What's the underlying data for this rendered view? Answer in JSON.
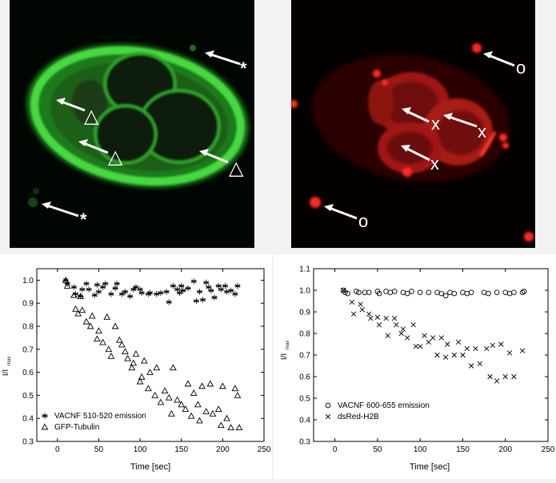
{
  "micrographs": {
    "green": {
      "markers": [
        "*",
        "*",
        "△",
        "△",
        "△"
      ],
      "color": "#3ec93a"
    },
    "red": {
      "markers": [
        "o",
        "o",
        "x",
        "x",
        "x"
      ],
      "color": "#e0201a"
    }
  },
  "chart_data": [
    {
      "type": "scatter",
      "title": "",
      "xlabel": "Time [sec]",
      "ylabel": "I/I",
      "ylabel_sub": "max",
      "xlim": [
        -25,
        250
      ],
      "ylim": [
        0.3,
        1.05
      ],
      "xticks": [
        0,
        50,
        100,
        150,
        200,
        250
      ],
      "yticks": [
        0.3,
        0.4,
        0.5,
        0.6,
        0.7,
        0.8,
        0.9,
        1.0
      ],
      "legend_position": "bottom-left",
      "series": [
        {
          "name": "VACNF 510-520 emission",
          "marker": "asterisk",
          "points": [
            [
              10,
              1.0
            ],
            [
              12,
              0.985
            ],
            [
              20,
              0.97
            ],
            [
              22,
              0.94
            ],
            [
              28,
              0.93
            ],
            [
              30,
              0.96
            ],
            [
              35,
              0.985
            ],
            [
              38,
              0.96
            ],
            [
              45,
              0.935
            ],
            [
              48,
              0.98
            ],
            [
              50,
              0.95
            ],
            [
              55,
              0.97
            ],
            [
              58,
              0.985
            ],
            [
              65,
              0.94
            ],
            [
              70,
              0.965
            ],
            [
              72,
              0.985
            ],
            [
              78,
              0.94
            ],
            [
              82,
              0.95
            ],
            [
              88,
              0.93
            ],
            [
              92,
              0.96
            ],
            [
              95,
              0.97
            ],
            [
              100,
              0.96
            ],
            [
              102,
              0.945
            ],
            [
              110,
              0.94
            ],
            [
              112,
              0.945
            ],
            [
              120,
              0.94
            ],
            [
              125,
              0.945
            ],
            [
              132,
              0.95
            ],
            [
              135,
              0.905
            ],
            [
              140,
              0.975
            ],
            [
              145,
              0.96
            ],
            [
              148,
              0.945
            ],
            [
              150,
              0.975
            ],
            [
              152,
              0.955
            ],
            [
              158,
              0.965
            ],
            [
              165,
              0.995
            ],
            [
              168,
              0.91
            ],
            [
              172,
              0.95
            ],
            [
              176,
              0.915
            ],
            [
              180,
              0.99
            ],
            [
              183,
              0.97
            ],
            [
              186,
              0.955
            ],
            [
              190,
              0.925
            ],
            [
              195,
              0.975
            ],
            [
              198,
              0.96
            ],
            [
              203,
              0.975
            ],
            [
              205,
              0.95
            ],
            [
              210,
              0.955
            ],
            [
              215,
              0.94
            ],
            [
              218,
              0.975
            ]
          ]
        },
        {
          "name": "GFP-Tubulin",
          "marker": "triangle",
          "points": [
            [
              10,
              1.0
            ],
            [
              12,
              0.975
            ],
            [
              20,
              0.935
            ],
            [
              22,
              0.875
            ],
            [
              25,
              0.855
            ],
            [
              28,
              0.93
            ],
            [
              30,
              0.87
            ],
            [
              35,
              0.82
            ],
            [
              40,
              0.8
            ],
            [
              42,
              0.845
            ],
            [
              48,
              0.745
            ],
            [
              50,
              0.78
            ],
            [
              55,
              0.73
            ],
            [
              60,
              0.84
            ],
            [
              62,
              0.7
            ],
            [
              65,
              0.67
            ],
            [
              70,
              0.8
            ],
            [
              75,
              0.74
            ],
            [
              78,
              0.72
            ],
            [
              82,
              0.69
            ],
            [
              85,
              0.66
            ],
            [
              90,
              0.62
            ],
            [
              92,
              0.64
            ],
            [
              95,
              0.68
            ],
            [
              100,
              0.56
            ],
            [
              102,
              0.58
            ],
            [
              105,
              0.65
            ],
            [
              110,
              0.53
            ],
            [
              112,
              0.6
            ],
            [
              118,
              0.5
            ],
            [
              120,
              0.62
            ],
            [
              125,
              0.47
            ],
            [
              130,
              0.52
            ],
            [
              135,
              0.49
            ],
            [
              138,
              0.42
            ],
            [
              140,
              0.62
            ],
            [
              145,
              0.48
            ],
            [
              150,
              0.46
            ],
            [
              155,
              0.44
            ],
            [
              158,
              0.55
            ],
            [
              162,
              0.41
            ],
            [
              165,
              0.51
            ],
            [
              170,
              0.46
            ],
            [
              172,
              0.39
            ],
            [
              175,
              0.54
            ],
            [
              180,
              0.43
            ],
            [
              185,
              0.55
            ],
            [
              188,
              0.42
            ],
            [
              195,
              0.44
            ],
            [
              198,
              0.37
            ],
            [
              200,
              0.54
            ],
            [
              205,
              0.4
            ],
            [
              210,
              0.36
            ],
            [
              215,
              0.53
            ],
            [
              218,
              0.5
            ],
            [
              220,
              0.36
            ]
          ]
        }
      ]
    },
    {
      "type": "scatter",
      "title": "",
      "xlabel": "Time [sec]",
      "ylabel": "I/I",
      "ylabel_sub": "max",
      "xlim": [
        -25,
        250
      ],
      "ylim": [
        0.3,
        1.1
      ],
      "xticks": [
        0,
        50,
        100,
        150,
        200,
        250
      ],
      "yticks": [
        0.3,
        0.4,
        0.5,
        0.6,
        0.7,
        0.8,
        0.9,
        1.0,
        1.1
      ],
      "legend_position": "bottom-left",
      "series": [
        {
          "name": "VACNF 600-655 emission",
          "marker": "circle",
          "points": [
            [
              10,
              1.0
            ],
            [
              12,
              0.99
            ],
            [
              15,
              0.985
            ],
            [
              25,
              0.995
            ],
            [
              28,
              0.99
            ],
            [
              35,
              0.99
            ],
            [
              40,
              0.99
            ],
            [
              50,
              0.995
            ],
            [
              52,
              0.985
            ],
            [
              60,
              0.995
            ],
            [
              65,
              0.99
            ],
            [
              70,
              0.995
            ],
            [
              80,
              0.99
            ],
            [
              85,
              0.985
            ],
            [
              90,
              0.995
            ],
            [
              100,
              0.99
            ],
            [
              110,
              0.99
            ],
            [
              120,
              0.99
            ],
            [
              125,
              0.985
            ],
            [
              130,
              0.975
            ],
            [
              135,
              0.99
            ],
            [
              140,
              0.985
            ],
            [
              150,
              0.99
            ],
            [
              155,
              0.985
            ],
            [
              160,
              0.99
            ],
            [
              175,
              0.99
            ],
            [
              180,
              0.985
            ],
            [
              190,
              0.99
            ],
            [
              200,
              0.99
            ],
            [
              205,
              0.985
            ],
            [
              210,
              0.99
            ],
            [
              220,
              0.99
            ],
            [
              222,
              0.995
            ]
          ]
        },
        {
          "name": "dsRed-H2B",
          "marker": "x",
          "points": [
            [
              10,
              1.0
            ],
            [
              20,
              0.945
            ],
            [
              22,
              0.89
            ],
            [
              30,
              0.935
            ],
            [
              32,
              0.91
            ],
            [
              40,
              0.89
            ],
            [
              42,
              0.87
            ],
            [
              50,
              0.875
            ],
            [
              52,
              0.84
            ],
            [
              60,
              0.87
            ],
            [
              62,
              0.79
            ],
            [
              70,
              0.87
            ],
            [
              72,
              0.84
            ],
            [
              78,
              0.8
            ],
            [
              80,
              0.82
            ],
            [
              85,
              0.78
            ],
            [
              92,
              0.84
            ],
            [
              95,
              0.74
            ],
            [
              100,
              0.74
            ],
            [
              105,
              0.79
            ],
            [
              110,
              0.76
            ],
            [
              115,
              0.78
            ],
            [
              120,
              0.7
            ],
            [
              125,
              0.78
            ],
            [
              130,
              0.69
            ],
            [
              132,
              0.75
            ],
            [
              140,
              0.7
            ],
            [
              145,
              0.76
            ],
            [
              150,
              0.7
            ],
            [
              155,
              0.73
            ],
            [
              160,
              0.65
            ],
            [
              165,
              0.73
            ],
            [
              170,
              0.66
            ],
            [
              178,
              0.73
            ],
            [
              182,
              0.6
            ],
            [
              185,
              0.745
            ],
            [
              190,
              0.58
            ],
            [
              195,
              0.75
            ],
            [
              200,
              0.6
            ],
            [
              205,
              0.71
            ],
            [
              210,
              0.6
            ],
            [
              220,
              0.72
            ]
          ]
        }
      ]
    }
  ]
}
